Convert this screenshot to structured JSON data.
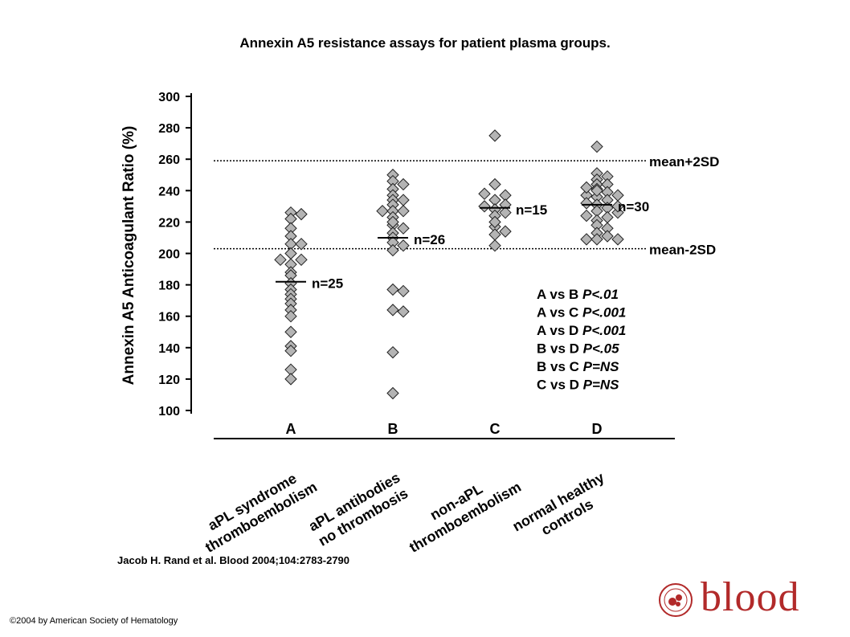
{
  "header": {
    "title": "Annexin A5 resistance assays for patient plasma groups."
  },
  "footer": {
    "citation": "Jacob H. Rand et al. Blood 2004;104:2783-2790",
    "copyright": "©2004 by American Society of Hematology"
  },
  "logo": {
    "word": "blood",
    "seal_text": "AMERICAN SOCIETY OF HEMATOLOGY",
    "color": "#b22a2a"
  },
  "chart_data": {
    "type": "scatter",
    "ylabel": "Annexin A5 Anticoagulant Ratio (%)",
    "ylim": [
      100,
      300
    ],
    "yticks": [
      100,
      120,
      140,
      160,
      180,
      200,
      220,
      240,
      260,
      280,
      300
    ],
    "categories": [
      "A",
      "B",
      "C",
      "D"
    ],
    "category_labels": [
      [
        "aPL syndrome",
        "thromboembolism"
      ],
      [
        "aPL antibodies",
        "no thrombosis"
      ],
      [
        "non-aPL",
        "thromboembolism"
      ],
      [
        "normal healthy",
        "controls"
      ]
    ],
    "reference_lines": [
      {
        "label": "mean+2SD",
        "value": 259
      },
      {
        "label": "mean-2SD",
        "value": 203
      }
    ],
    "marker_color": "#b4b4b4",
    "series": [
      {
        "category": "A",
        "n_label": "n=25",
        "mean": 182,
        "points": [
          {
            "y": 226,
            "dx": 0
          },
          {
            "y": 222,
            "dx": 0
          },
          {
            "y": 225,
            "dx": 1
          },
          {
            "y": 216,
            "dx": 0
          },
          {
            "y": 211,
            "dx": 0
          },
          {
            "y": 206,
            "dx": 0
          },
          {
            "y": 206,
            "dx": 1
          },
          {
            "y": 200,
            "dx": 0
          },
          {
            "y": 196,
            "dx": -1
          },
          {
            "y": 196,
            "dx": 1
          },
          {
            "y": 193,
            "dx": 0
          },
          {
            "y": 188,
            "dx": 0
          },
          {
            "y": 186,
            "dx": 0
          },
          {
            "y": 181,
            "dx": 0
          },
          {
            "y": 177,
            "dx": 0
          },
          {
            "y": 174,
            "dx": 0
          },
          {
            "y": 171,
            "dx": 0
          },
          {
            "y": 168,
            "dx": 0
          },
          {
            "y": 164,
            "dx": 0
          },
          {
            "y": 160,
            "dx": 0
          },
          {
            "y": 150,
            "dx": 0
          },
          {
            "y": 141,
            "dx": 0
          },
          {
            "y": 138,
            "dx": 0
          },
          {
            "y": 126,
            "dx": 0
          },
          {
            "y": 120,
            "dx": 0
          }
        ]
      },
      {
        "category": "B",
        "n_label": "n=26",
        "mean": 210,
        "points": [
          {
            "y": 250,
            "dx": 0
          },
          {
            "y": 246,
            "dx": 0
          },
          {
            "y": 244,
            "dx": 1
          },
          {
            "y": 241,
            "dx": 0
          },
          {
            "y": 237,
            "dx": 0
          },
          {
            "y": 234,
            "dx": 0
          },
          {
            "y": 234,
            "dx": 1
          },
          {
            "y": 231,
            "dx": 0
          },
          {
            "y": 227,
            "dx": -1
          },
          {
            "y": 227,
            "dx": 0
          },
          {
            "y": 227,
            "dx": 1
          },
          {
            "y": 223,
            "dx": 0
          },
          {
            "y": 218,
            "dx": 0
          },
          {
            "y": 216,
            "dx": 1
          },
          {
            "y": 213,
            "dx": 0
          },
          {
            "y": 210,
            "dx": 0
          },
          {
            "y": 207,
            "dx": 0
          },
          {
            "y": 205,
            "dx": 1
          },
          {
            "y": 202,
            "dx": 0
          },
          {
            "y": 177,
            "dx": 0
          },
          {
            "y": 176,
            "dx": 1
          },
          {
            "y": 164,
            "dx": 0
          },
          {
            "y": 163,
            "dx": 1
          },
          {
            "y": 137,
            "dx": 0
          },
          {
            "y": 111,
            "dx": 0
          },
          {
            "y": 220,
            "dx": 0
          }
        ]
      },
      {
        "category": "C",
        "n_label": "n=15",
        "mean": 229,
        "points": [
          {
            "y": 275,
            "dx": 0
          },
          {
            "y": 244,
            "dx": 0
          },
          {
            "y": 238,
            "dx": -1
          },
          {
            "y": 237,
            "dx": 1
          },
          {
            "y": 234,
            "dx": 0
          },
          {
            "y": 231,
            "dx": 1
          },
          {
            "y": 230,
            "dx": -1
          },
          {
            "y": 228,
            "dx": 0
          },
          {
            "y": 226,
            "dx": 1
          },
          {
            "y": 224,
            "dx": 0
          },
          {
            "y": 217,
            "dx": 0
          },
          {
            "y": 214,
            "dx": 1
          },
          {
            "y": 212,
            "dx": 0
          },
          {
            "y": 205,
            "dx": 0
          },
          {
            "y": 220,
            "dx": 0
          }
        ]
      },
      {
        "category": "D",
        "n_label": "n=30",
        "mean": 231,
        "points": [
          {
            "y": 268,
            "dx": 0
          },
          {
            "y": 251,
            "dx": 0
          },
          {
            "y": 249,
            "dx": 1
          },
          {
            "y": 247,
            "dx": 0
          },
          {
            "y": 244,
            "dx": 0
          },
          {
            "y": 244,
            "dx": 1
          },
          {
            "y": 241,
            "dx": 0
          },
          {
            "y": 239,
            "dx": 1
          },
          {
            "y": 237,
            "dx": -1
          },
          {
            "y": 237,
            "dx": 2
          },
          {
            "y": 236,
            "dx": 0
          },
          {
            "y": 234,
            "dx": 1
          },
          {
            "y": 232,
            "dx": -1
          },
          {
            "y": 231,
            "dx": 0
          },
          {
            "y": 229,
            "dx": 1
          },
          {
            "y": 227,
            "dx": 0
          },
          {
            "y": 224,
            "dx": -1
          },
          {
            "y": 223,
            "dx": 1
          },
          {
            "y": 221,
            "dx": 0
          },
          {
            "y": 218,
            "dx": 0
          },
          {
            "y": 216,
            "dx": 1
          },
          {
            "y": 213,
            "dx": 0
          },
          {
            "y": 211,
            "dx": 1
          },
          {
            "y": 209,
            "dx": -1
          },
          {
            "y": 209,
            "dx": 0
          },
          {
            "y": 209,
            "dx": 2
          },
          {
            "y": 226,
            "dx": 2
          },
          {
            "y": 242,
            "dx": -1
          },
          {
            "y": 230,
            "dx": 2
          },
          {
            "y": 240,
            "dx": 0
          }
        ]
      }
    ],
    "stats": [
      {
        "pair": "A vs B",
        "p": "P<.01"
      },
      {
        "pair": "A vs C",
        "p": "P<.001"
      },
      {
        "pair": "A vs D",
        "p": "P<.001"
      },
      {
        "pair": "B vs D",
        "p": "P<.05"
      },
      {
        "pair": "B vs C",
        "p": "P=NS"
      },
      {
        "pair": "C vs D",
        "p": "P=NS"
      }
    ]
  }
}
